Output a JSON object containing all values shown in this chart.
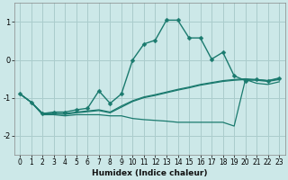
{
  "xlabel": "Humidex (Indice chaleur)",
  "bg_color": "#cce8e8",
  "grid_color": "#aacccc",
  "line_color": "#1a7a6e",
  "xlim": [
    -0.5,
    23.5
  ],
  "ylim": [
    -2.5,
    1.5
  ],
  "xticks": [
    0,
    1,
    2,
    3,
    4,
    5,
    6,
    7,
    8,
    9,
    10,
    11,
    12,
    13,
    14,
    15,
    16,
    17,
    18,
    19,
    20,
    21,
    22,
    23
  ],
  "yticks": [
    -2,
    -1,
    0,
    1
  ],
  "series": [
    {
      "x": [
        0,
        1,
        2,
        3,
        4,
        5,
        6,
        7,
        8,
        9,
        10,
        11,
        12,
        13,
        14,
        15,
        16,
        17,
        18,
        19,
        20,
        21,
        22,
        23
      ],
      "y": [
        -0.9,
        -1.12,
        -1.42,
        -1.38,
        -1.38,
        -1.32,
        -1.28,
        -0.82,
        -1.15,
        -0.9,
        0.0,
        0.42,
        0.52,
        1.05,
        1.05,
        0.58,
        0.58,
        0.02,
        0.2,
        -0.42,
        -0.55,
        -0.52,
        -0.55,
        -0.48
      ],
      "marker": "D",
      "markersize": 2.5,
      "linewidth": 1.0
    },
    {
      "x": [
        0,
        1,
        2,
        3,
        4,
        5,
        6,
        7,
        8,
        9,
        10,
        11,
        12,
        13,
        14,
        15,
        16,
        17,
        18,
        19,
        20,
        21,
        22,
        23
      ],
      "y": [
        -0.9,
        -1.12,
        -1.42,
        -1.42,
        -1.42,
        -1.38,
        -1.35,
        -1.32,
        -1.38,
        -1.22,
        -1.08,
        -0.98,
        -0.92,
        -0.85,
        -0.78,
        -0.72,
        -0.65,
        -0.6,
        -0.55,
        -0.52,
        -0.5,
        -0.52,
        -0.55,
        -0.5
      ],
      "marker": null,
      "linewidth": 0.9
    },
    {
      "x": [
        0,
        1,
        2,
        3,
        4,
        5,
        6,
        7,
        8,
        9,
        10,
        11,
        12,
        13,
        14,
        15,
        16,
        17,
        18,
        19,
        20,
        21,
        22,
        23
      ],
      "y": [
        -0.9,
        -1.12,
        -1.42,
        -1.42,
        -1.44,
        -1.4,
        -1.37,
        -1.34,
        -1.4,
        -1.25,
        -1.1,
        -1.0,
        -0.94,
        -0.87,
        -0.8,
        -0.74,
        -0.67,
        -0.62,
        -0.57,
        -0.54,
        -0.52,
        -0.54,
        -0.57,
        -0.52
      ],
      "marker": null,
      "linewidth": 0.9
    },
    {
      "x": [
        0,
        1,
        2,
        3,
        4,
        5,
        6,
        7,
        8,
        9,
        10,
        11,
        12,
        13,
        14,
        15,
        16,
        17,
        18,
        19,
        20,
        21,
        22,
        23
      ],
      "y": [
        -0.9,
        -1.12,
        -1.45,
        -1.45,
        -1.48,
        -1.45,
        -1.45,
        -1.45,
        -1.48,
        -1.48,
        -1.55,
        -1.58,
        -1.6,
        -1.62,
        -1.65,
        -1.65,
        -1.65,
        -1.65,
        -1.65,
        -1.75,
        -0.52,
        -0.62,
        -0.65,
        -0.58
      ],
      "marker": null,
      "linewidth": 0.9
    }
  ]
}
